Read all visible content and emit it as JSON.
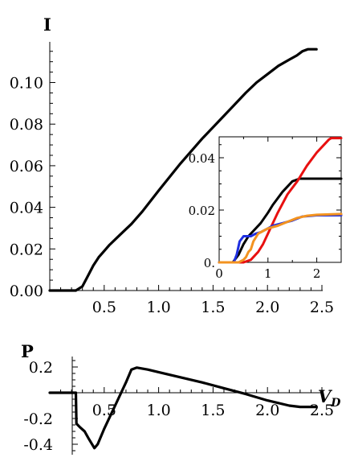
{
  "chart_data": [
    {
      "id": "current",
      "type": "line",
      "ylabel": "I",
      "xlabel": "V",
      "xlabel_sub": "D",
      "xlim": [
        0,
        2.5
      ],
      "ylim": [
        0,
        0.118
      ],
      "xticks": [
        0.5,
        1.0,
        1.5,
        2.0,
        2.5
      ],
      "xtick_labels": [
        "0.5",
        "1.0",
        "1.5",
        "2.0",
        "2.5"
      ],
      "yticks": [
        0.0,
        0.02,
        0.04,
        0.06,
        0.08,
        0.1
      ],
      "ytick_labels": [
        "0.00",
        "0.02",
        "0.04",
        "0.06",
        "0.08",
        "0.10"
      ],
      "series": [
        {
          "color": "#000000",
          "points": [
            [
              0,
              0
            ],
            [
              0.24,
              0
            ],
            [
              0.3,
              0.002
            ],
            [
              0.35,
              0.007
            ],
            [
              0.4,
              0.012
            ],
            [
              0.45,
              0.016
            ],
            [
              0.55,
              0.022
            ],
            [
              0.65,
              0.027
            ],
            [
              0.75,
              0.032
            ],
            [
              0.85,
              0.038
            ],
            [
              1.0,
              0.048
            ],
            [
              1.2,
              0.061
            ],
            [
              1.4,
              0.073
            ],
            [
              1.6,
              0.084
            ],
            [
              1.8,
              0.095
            ],
            [
              1.9,
              0.1
            ],
            [
              2.0,
              0.104
            ],
            [
              2.1,
              0.108
            ],
            [
              2.2,
              0.111
            ],
            [
              2.27,
              0.113
            ],
            [
              2.32,
              0.115
            ],
            [
              2.37,
              0.116
            ],
            [
              2.45,
              0.116
            ]
          ]
        }
      ]
    },
    {
      "id": "inset",
      "type": "line",
      "xlim": [
        0,
        2.5
      ],
      "ylim": [
        0,
        0.048
      ],
      "xticks": [
        0,
        1,
        2
      ],
      "xtick_labels": [
        "0",
        "1",
        "2"
      ],
      "yticks": [
        0,
        0.02,
        0.04
      ],
      "ytick_labels": [
        "0.",
        "0.02",
        "0.04"
      ],
      "series": [
        {
          "color": "#000000",
          "points": [
            [
              0,
              0
            ],
            [
              0.28,
              0
            ],
            [
              0.4,
              0.003
            ],
            [
              0.5,
              0.007
            ],
            [
              0.6,
              0.01
            ],
            [
              0.7,
              0.012
            ],
            [
              0.85,
              0.015
            ],
            [
              1.0,
              0.019
            ],
            [
              1.1,
              0.022
            ],
            [
              1.3,
              0.027
            ],
            [
              1.5,
              0.031
            ],
            [
              1.65,
              0.032
            ],
            [
              2.5,
              0.032
            ]
          ]
        },
        {
          "color": "#e81010",
          "points": [
            [
              0,
              0
            ],
            [
              0.5,
              0
            ],
            [
              0.65,
              0.001
            ],
            [
              0.8,
              0.004
            ],
            [
              0.9,
              0.007
            ],
            [
              1.0,
              0.011
            ],
            [
              1.2,
              0.019
            ],
            [
              1.4,
              0.026
            ],
            [
              1.6,
              0.031
            ],
            [
              1.8,
              0.037
            ],
            [
              2.0,
              0.042
            ],
            [
              2.15,
              0.045
            ],
            [
              2.25,
              0.047
            ],
            [
              2.3,
              0.0475
            ],
            [
              2.5,
              0.0475
            ]
          ]
        },
        {
          "color": "#1f2fe0",
          "points": [
            [
              0,
              0
            ],
            [
              0.3,
              0
            ],
            [
              0.36,
              0.003
            ],
            [
              0.42,
              0.008
            ],
            [
              0.5,
              0.01
            ],
            [
              0.65,
              0.01
            ],
            [
              0.75,
              0.011
            ],
            [
              0.85,
              0.0115
            ],
            [
              1.0,
              0.013
            ],
            [
              1.1,
              0.014
            ],
            [
              1.3,
              0.015
            ],
            [
              1.5,
              0.016
            ],
            [
              1.7,
              0.0175
            ],
            [
              2.0,
              0.018
            ],
            [
              2.5,
              0.018
            ]
          ]
        },
        {
          "color": "#f39320",
          "points": [
            [
              0,
              0
            ],
            [
              0.4,
              0
            ],
            [
              0.5,
              0.001
            ],
            [
              0.55,
              0.002
            ],
            [
              0.6,
              0.004
            ],
            [
              0.65,
              0.005
            ],
            [
              0.7,
              0.008
            ],
            [
              0.8,
              0.011
            ],
            [
              0.9,
              0.012
            ],
            [
              1.0,
              0.013
            ],
            [
              1.2,
              0.014
            ],
            [
              1.4,
              0.0155
            ],
            [
              1.6,
              0.017
            ],
            [
              1.8,
              0.0178
            ],
            [
              2.0,
              0.0182
            ],
            [
              2.5,
              0.0185
            ]
          ]
        }
      ]
    },
    {
      "id": "power",
      "type": "line",
      "ylabel": "P",
      "xlabel": "V",
      "xlabel_sub": "D",
      "xlim": [
        0,
        2.5
      ],
      "ylim": [
        -0.45,
        0.25
      ],
      "xticks": [
        0.5,
        1.0,
        1.5,
        2.0,
        2.5
      ],
      "xtick_labels": [
        "0.5",
        "1.0",
        "1.5",
        "2.0",
        "2.5"
      ],
      "yticks": [
        0.2,
        -0.2,
        -0.4
      ],
      "ytick_labels": [
        "0.2",
        "-0.2",
        "-0.4"
      ],
      "series": [
        {
          "color": "#000000",
          "points": [
            [
              0,
              0
            ],
            [
              0.24,
              0
            ],
            [
              0.245,
              -0.24
            ],
            [
              0.28,
              -0.27
            ],
            [
              0.32,
              -0.3
            ],
            [
              0.36,
              -0.36
            ],
            [
              0.41,
              -0.43
            ],
            [
              0.44,
              -0.4
            ],
            [
              0.5,
              -0.28
            ],
            [
              0.6,
              -0.1
            ],
            [
              0.7,
              0.08
            ],
            [
              0.75,
              0.18
            ],
            [
              0.8,
              0.195
            ],
            [
              0.9,
              0.18
            ],
            [
              1.0,
              0.16
            ],
            [
              1.2,
              0.12
            ],
            [
              1.4,
              0.08
            ],
            [
              1.6,
              0.035
            ],
            [
              1.8,
              -0.01
            ],
            [
              2.0,
              -0.06
            ],
            [
              2.2,
              -0.1
            ],
            [
              2.3,
              -0.11
            ],
            [
              2.45,
              -0.11
            ]
          ]
        }
      ]
    }
  ]
}
